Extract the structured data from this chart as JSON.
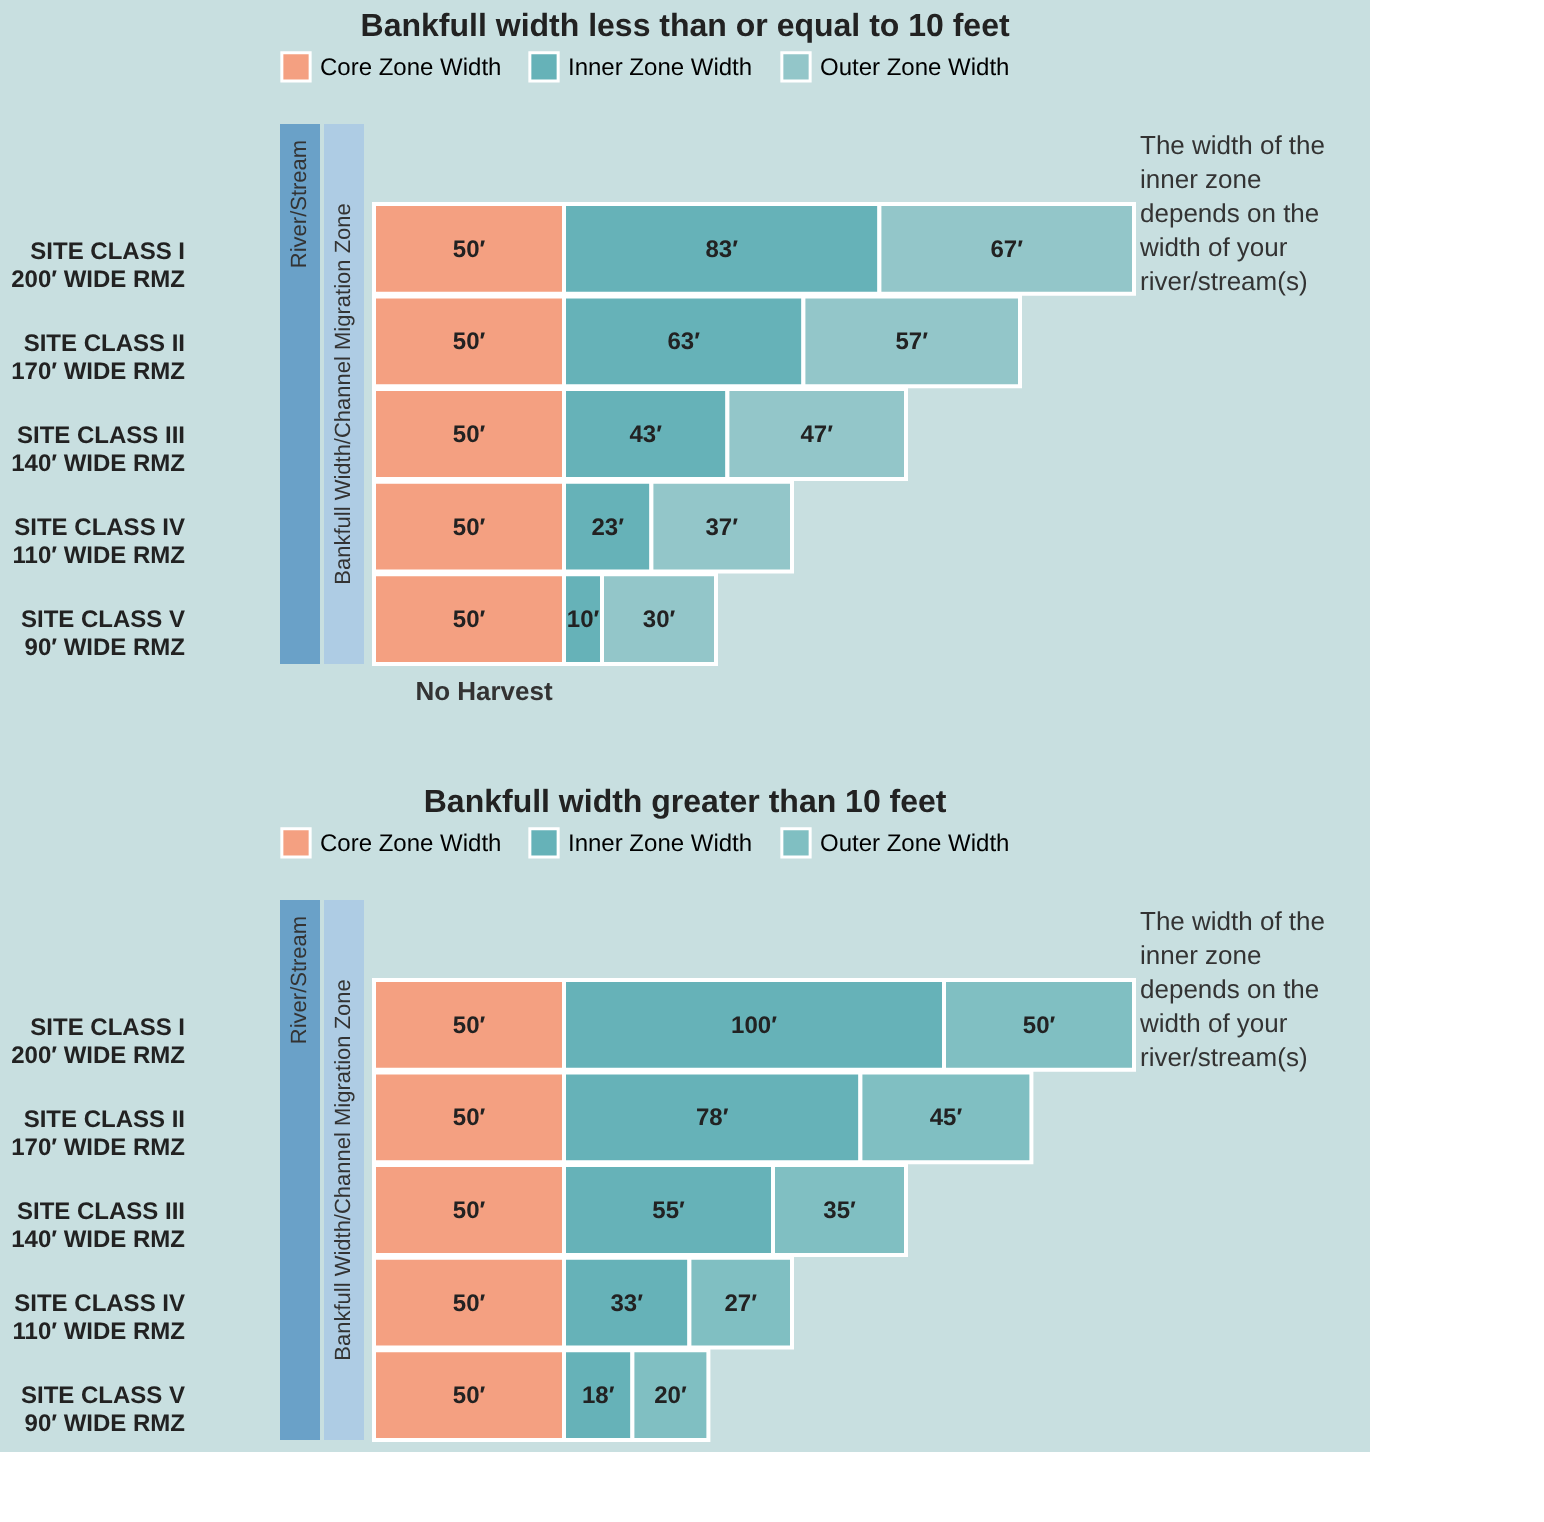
{
  "chart_data": [
    {
      "type": "bar",
      "orientation": "horizontal",
      "stacked": true,
      "legend": "top",
      "tick_labels": "y",
      "title": "Bankfull width less than or equal to 10 feet",
      "categories": [
        "SITE CLASS I\n200′ WIDE RMZ",
        "SITE CLASS II\n170′ WIDE RMZ",
        "SITE CLASS III\n140′ WIDE RMZ",
        "SITE CLASS IV\n110′ WIDE RMZ",
        "SITE CLASS V\n90′ WIDE RMZ"
      ],
      "series": [
        {
          "name": "Core Zone Width",
          "color": "#f4a081",
          "values": [
            50,
            50,
            50,
            50,
            50
          ],
          "value_labels": [
            "50′",
            "50′",
            "50′",
            "50′",
            "50′"
          ]
        },
        {
          "name": "Inner Zone Width",
          "color": "#66b2b8",
          "values": [
            83,
            63,
            43,
            23,
            10
          ],
          "value_labels": [
            "83′",
            "63′",
            "43′",
            "23′",
            "10′"
          ]
        },
        {
          "name": "Outer Zone Width",
          "color": "#93c6c9",
          "values": [
            67,
            57,
            47,
            37,
            30
          ],
          "value_labels": [
            "67′",
            "57′",
            "47′",
            "37′",
            "30′"
          ]
        }
      ],
      "annotations": [
        "River/Stream",
        "Bankfull Width/Channel Migration Zone",
        "The width of the inner zone depends on the width of your river/stream(s)",
        "No Harvest"
      ]
    },
    {
      "type": "bar",
      "orientation": "horizontal",
      "stacked": true,
      "legend": "top",
      "tick_labels": "y",
      "title": "Bankfull width greater than 10 feet",
      "categories": [
        "SITE CLASS I\n200′ WIDE RMZ",
        "SITE CLASS II\n170′ WIDE RMZ",
        "SITE CLASS III\n140′ WIDE RMZ",
        "SITE CLASS IV\n110′ WIDE RMZ",
        "SITE CLASS V\n90′ WIDE RMZ"
      ],
      "series": [
        {
          "name": "Core Zone Width",
          "color": "#f4a081",
          "values": [
            50,
            50,
            50,
            50,
            50
          ],
          "value_labels": [
            "50′",
            "50′",
            "50′",
            "50′",
            "50′"
          ]
        },
        {
          "name": "Inner Zone Width",
          "color": "#66b2b8",
          "values": [
            100,
            78,
            55,
            33,
            18
          ],
          "value_labels": [
            "100′",
            "78′",
            "55′",
            "33′",
            "18′"
          ]
        },
        {
          "name": "Outer Zone Width",
          "color": "#80bfc2",
          "values": [
            50,
            45,
            35,
            27,
            20
          ],
          "value_labels": [
            "50′",
            "45′",
            "35′",
            "27′",
            "20′"
          ]
        }
      ],
      "annotations": [
        "River/Stream",
        "Bankfull Width/Channel Migration Zone",
        "The width of the inner zone depends on the width of your river/stream(s)"
      ]
    }
  ]
}
